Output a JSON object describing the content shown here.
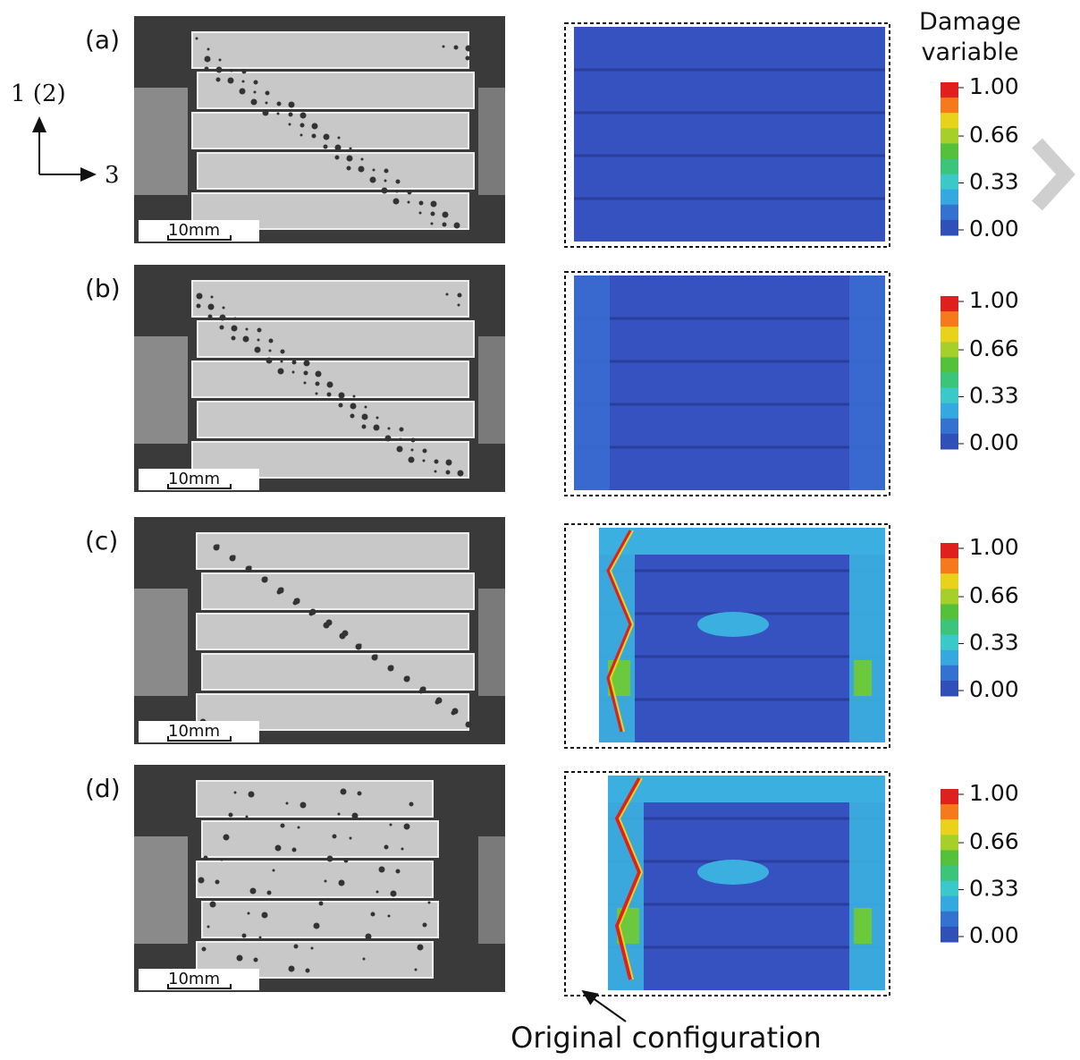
{
  "axes": {
    "vertical": "1 (2)",
    "horizontal": "3"
  },
  "colorbar_title": "Damage variable",
  "colorbar_ticks": [
    {
      "value": 1,
      "label": "1.00"
    },
    {
      "value": 0.66,
      "label": "0.66"
    },
    {
      "value": 0.33,
      "label": "0.33"
    },
    {
      "value": 0,
      "label": "0.00"
    }
  ],
  "panels": [
    {
      "label": "(a)",
      "scale_bar": "10mm"
    },
    {
      "label": "(b)",
      "scale_bar": "10mm"
    },
    {
      "label": "(c)",
      "scale_bar": "10mm"
    },
    {
      "label": "(d)",
      "scale_bar": "10mm"
    }
  ],
  "annotation": "Original configuration"
}
